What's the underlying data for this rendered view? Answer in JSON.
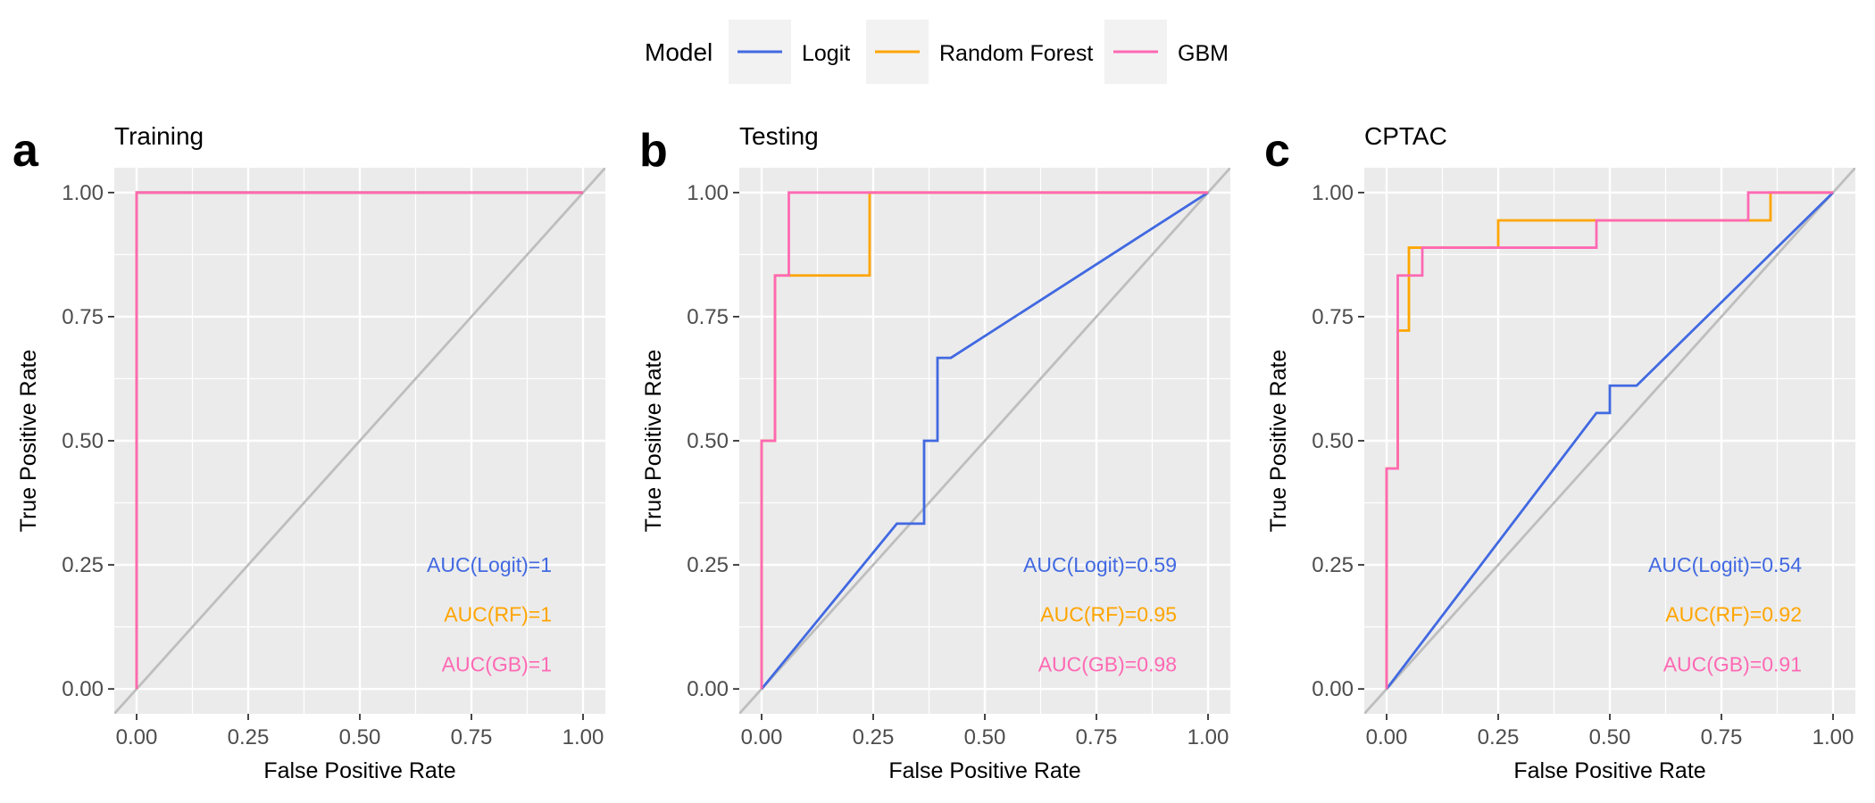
{
  "legend": {
    "title": "Model",
    "items": [
      {
        "label": "Logit",
        "color": "#4169E1"
      },
      {
        "label": "Random Forest",
        "color": "#FFA500"
      },
      {
        "label": "GBM",
        "color": "#FF69B4"
      }
    ]
  },
  "chart_data": [
    {
      "type": "line",
      "letter": "a",
      "title": "Training",
      "xlabel": "False Positive Rate",
      "ylabel": "True Positive Rate",
      "xlim": [
        0,
        1
      ],
      "ylim": [
        0,
        1
      ],
      "ticks": [
        0,
        0.25,
        0.5,
        0.75,
        1
      ],
      "tick_labels": [
        "0.00",
        "0.25",
        "0.50",
        "0.75",
        "1.00"
      ],
      "grid": true,
      "reference_line": "diagonal",
      "series": [
        {
          "name": "Logit",
          "color": "#4169E1",
          "points": [
            [
              0,
              0
            ],
            [
              0,
              1
            ],
            [
              1,
              1
            ]
          ]
        },
        {
          "name": "Random Forest",
          "color": "#FFA500",
          "points": [
            [
              0,
              0
            ],
            [
              0,
              1
            ],
            [
              1,
              1
            ]
          ]
        },
        {
          "name": "GBM",
          "color": "#FF69B4",
          "points": [
            [
              0,
              0
            ],
            [
              0,
              1
            ],
            [
              1,
              1
            ]
          ]
        }
      ],
      "annotations": [
        {
          "text": "AUC(Logit)=1",
          "color": "#4169E1"
        },
        {
          "text": "AUC(RF)=1",
          "color": "#FFA500"
        },
        {
          "text": "AUC(GB)=1",
          "color": "#FF69B4"
        }
      ]
    },
    {
      "type": "line",
      "letter": "b",
      "title": "Testing",
      "xlabel": "False Positive Rate",
      "ylabel": "True Positive Rate",
      "xlim": [
        0,
        1
      ],
      "ylim": [
        0,
        1
      ],
      "ticks": [
        0,
        0.25,
        0.5,
        0.75,
        1
      ],
      "tick_labels": [
        "0.00",
        "0.25",
        "0.50",
        "0.75",
        "1.00"
      ],
      "grid": true,
      "reference_line": "diagonal",
      "series": [
        {
          "name": "Logit",
          "color": "#4169E1",
          "points": [
            [
              0,
              0
            ],
            [
              0.303,
              0.333
            ],
            [
              0.364,
              0.333
            ],
            [
              0.364,
              0.5
            ],
            [
              0.394,
              0.5
            ],
            [
              0.394,
              0.667
            ],
            [
              0.424,
              0.667
            ],
            [
              1,
              1
            ]
          ]
        },
        {
          "name": "Random Forest",
          "color": "#FFA500",
          "points": [
            [
              0,
              0
            ],
            [
              0,
              0.5
            ],
            [
              0.03,
              0.5
            ],
            [
              0.03,
              0.833
            ],
            [
              0.242,
              0.833
            ],
            [
              0.242,
              1
            ],
            [
              1,
              1
            ]
          ]
        },
        {
          "name": "GBM",
          "color": "#FF69B4",
          "points": [
            [
              0,
              0
            ],
            [
              0,
              0.5
            ],
            [
              0.03,
              0.5
            ],
            [
              0.03,
              0.833
            ],
            [
              0.061,
              0.833
            ],
            [
              0.061,
              1
            ],
            [
              1,
              1
            ]
          ]
        }
      ],
      "annotations": [
        {
          "text": "AUC(Logit)=0.59",
          "color": "#4169E1"
        },
        {
          "text": "AUC(RF)=0.95",
          "color": "#FFA500"
        },
        {
          "text": "AUC(GB)=0.98",
          "color": "#FF69B4"
        }
      ]
    },
    {
      "type": "line",
      "letter": "c",
      "title": "CPTAC",
      "xlabel": "False Positive Rate",
      "ylabel": "True Positive Rate",
      "xlim": [
        0,
        1
      ],
      "ylim": [
        0,
        1
      ],
      "ticks": [
        0,
        0.25,
        0.5,
        0.75,
        1
      ],
      "tick_labels": [
        "0.00",
        "0.25",
        "0.50",
        "0.75",
        "1.00"
      ],
      "grid": true,
      "reference_line": "diagonal",
      "series": [
        {
          "name": "Logit",
          "color": "#4169E1",
          "points": [
            [
              0,
              0
            ],
            [
              0.47,
              0.556
            ],
            [
              0.5,
              0.556
            ],
            [
              0.5,
              0.611
            ],
            [
              0.56,
              0.611
            ],
            [
              1,
              1
            ]
          ]
        },
        {
          "name": "Random Forest",
          "color": "#FFA500",
          "points": [
            [
              0,
              0
            ],
            [
              0,
              0.444
            ],
            [
              0.025,
              0.444
            ],
            [
              0.025,
              0.722
            ],
            [
              0.05,
              0.722
            ],
            [
              0.05,
              0.889
            ],
            [
              0.25,
              0.889
            ],
            [
              0.25,
              0.944
            ],
            [
              0.86,
              0.944
            ],
            [
              0.86,
              1
            ],
            [
              1,
              1
            ]
          ]
        },
        {
          "name": "GBM",
          "color": "#FF69B4",
          "points": [
            [
              0,
              0
            ],
            [
              0,
              0.444
            ],
            [
              0.025,
              0.444
            ],
            [
              0.025,
              0.833
            ],
            [
              0.08,
              0.833
            ],
            [
              0.08,
              0.889
            ],
            [
              0.47,
              0.889
            ],
            [
              0.47,
              0.944
            ],
            [
              0.81,
              0.944
            ],
            [
              0.81,
              1
            ],
            [
              1,
              1
            ]
          ]
        }
      ],
      "annotations": [
        {
          "text": "AUC(Logit)=0.54",
          "color": "#4169E1"
        },
        {
          "text": "AUC(RF)=0.92",
          "color": "#FFA500"
        },
        {
          "text": "AUC(GB)=0.91",
          "color": "#FF69B4"
        }
      ]
    }
  ]
}
